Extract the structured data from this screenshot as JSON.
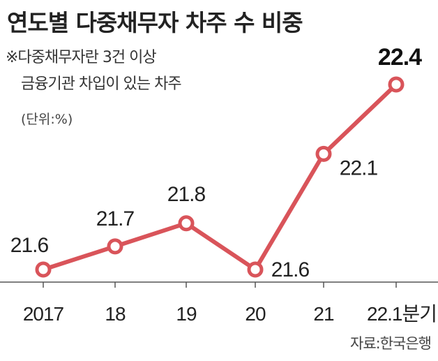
{
  "title": "연도별 다중채무자 차주 수 비중",
  "note_line1": "※다중채무자란 3건 이상",
  "note_line2": "금융기관 차입이 있는 차주",
  "unit": "(단위:%)",
  "source": "자료:한국은행",
  "colors": {
    "line": "#d9545a",
    "marker_fill": "#ffffff",
    "axis": "#555555"
  },
  "chart_data": {
    "type": "line",
    "categories": [
      "2017",
      "18",
      "19",
      "20",
      "21",
      "22.1분기"
    ],
    "series": [
      {
        "values": [
          21.6,
          21.7,
          21.8,
          21.6,
          22.1,
          22.4
        ]
      }
    ],
    "data_labels": [
      "21.6",
      "21.7",
      "21.8",
      "21.6",
      "22.1",
      "22.4"
    ],
    "highlight_index": 5
  }
}
